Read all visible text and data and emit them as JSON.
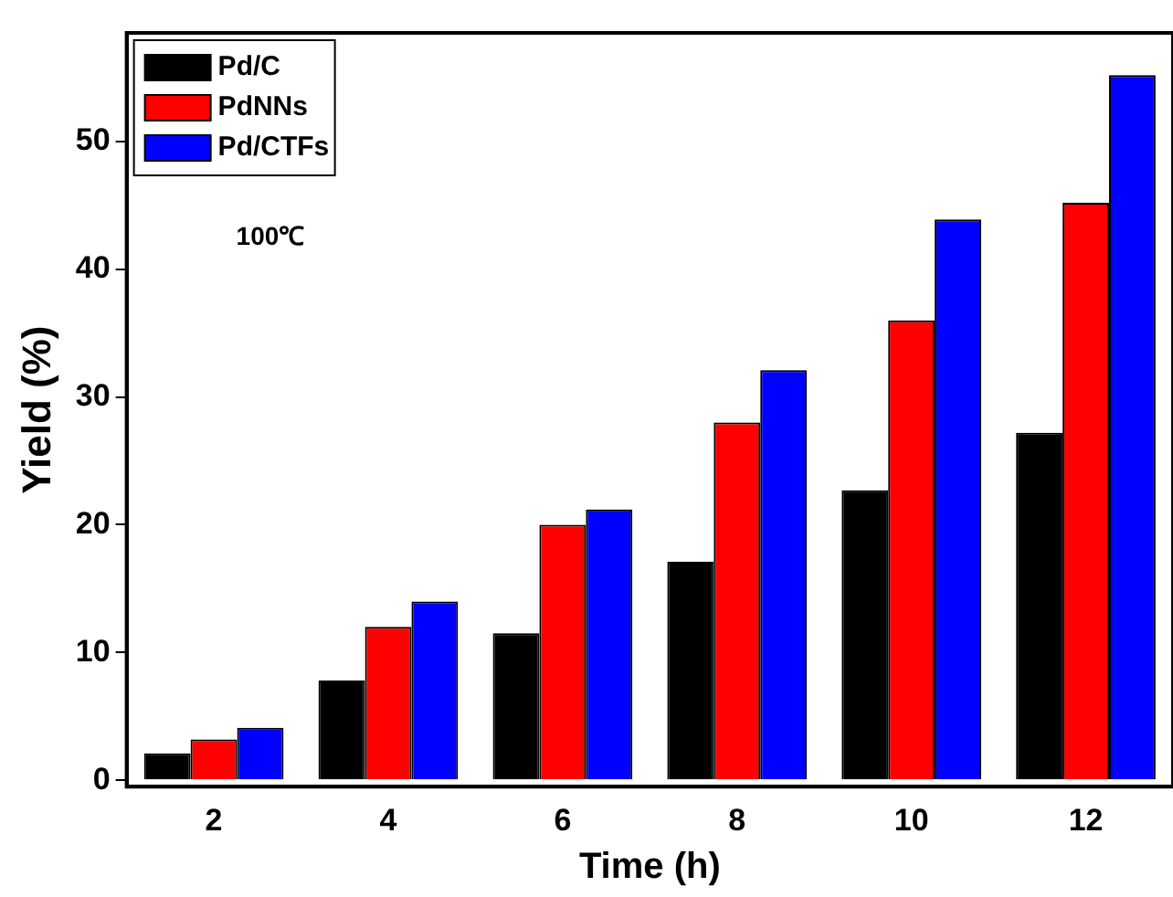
{
  "chart_data": {
    "type": "bar",
    "xlabel": "Time (h)",
    "ylabel": "Yield (%)",
    "categories": [
      "2",
      "4",
      "6",
      "8",
      "10",
      "12"
    ],
    "series": [
      {
        "name": "Pd/C",
        "color": "#000000",
        "values": [
          2.1,
          7.8,
          11.5,
          17.1,
          22.7,
          27.2
        ]
      },
      {
        "name": "PdNNs",
        "color": "#ff0000",
        "values": [
          3.2,
          12,
          20,
          28,
          36,
          45.2
        ]
      },
      {
        "name": "Pd/CTFs",
        "color": "#0000ff",
        "values": [
          4.1,
          14,
          21.2,
          32.1,
          43.9,
          55.2
        ]
      }
    ],
    "ylim": [
      -0.5,
      58.5
    ],
    "yticks": [
      0,
      10,
      20,
      30,
      40,
      50
    ],
    "grid": false,
    "legend": "top left",
    "annotations": [
      "100℃"
    ]
  }
}
